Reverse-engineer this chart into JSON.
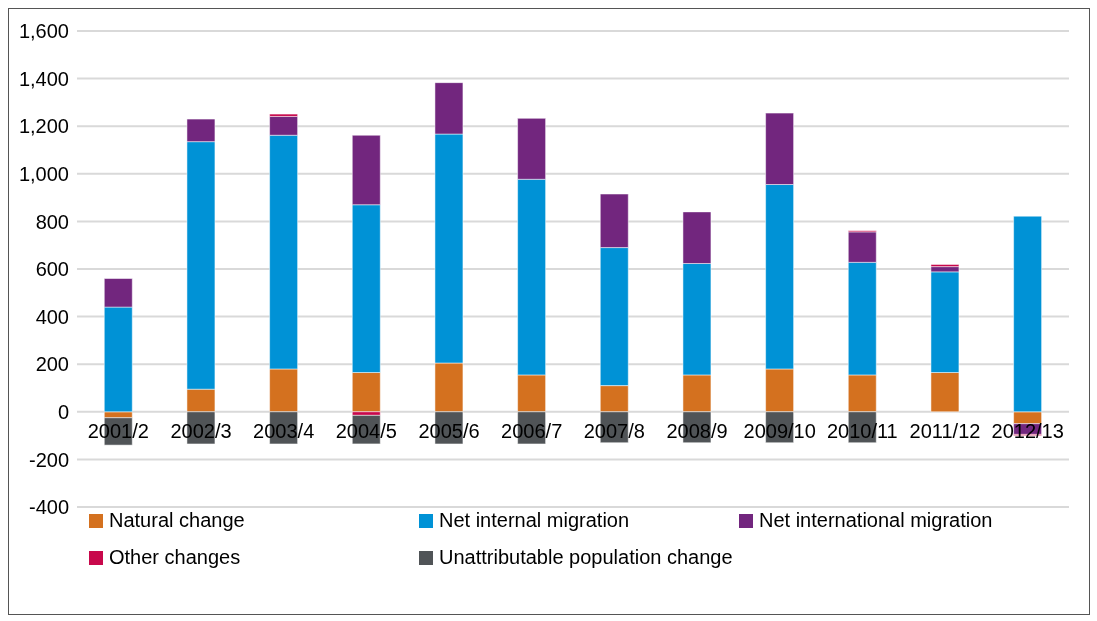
{
  "chart_data": {
    "type": "bar",
    "stacked": true,
    "categories": [
      "2001/2",
      "2002/3",
      "2003/4",
      "2004/5",
      "2005/6",
      "2006/7",
      "2007/8",
      "2008/9",
      "2009/10",
      "2010/11",
      "2011/12",
      "2012/13"
    ],
    "series": [
      {
        "name": "Natural change",
        "color": "#d4711f",
        "values": [
          -25,
          95,
          180,
          165,
          205,
          155,
          110,
          155,
          180,
          155,
          165,
          -50
        ]
      },
      {
        "name": "Net internal migration",
        "color": "#0092d6",
        "values": [
          440,
          1040,
          982,
          705,
          962,
          822,
          580,
          468,
          775,
          473,
          423,
          822
        ]
      },
      {
        "name": "Net international migration",
        "color": "#72267e",
        "values": [
          120,
          95,
          79,
          292,
          216,
          256,
          225,
          217,
          300,
          128,
          22,
          -45
        ]
      },
      {
        "name": "Other changes",
        "color": "#c8084b",
        "values": [
          null,
          null,
          10,
          -15,
          null,
          null,
          null,
          null,
          null,
          5,
          9,
          -5
        ]
      },
      {
        "name": "Unattributable population change",
        "color": "#505457",
        "values": [
          -115,
          -135,
          -135,
          -120,
          -135,
          -135,
          -130,
          -130,
          -130,
          -130,
          null,
          null
        ]
      }
    ],
    "ylim": [
      -400,
      1600
    ],
    "yticks": [
      {
        "value": -400,
        "label": "-400"
      },
      {
        "value": -200,
        "label": "-200"
      },
      0,
      200,
      400,
      600,
      800,
      {
        "value": 1000,
        "label": "1,000"
      },
      {
        "value": 1200,
        "label": "1,200"
      },
      {
        "value": 1400,
        "label": "1,400"
      },
      {
        "value": 1600,
        "label": "1,600"
      }
    ],
    "grid": "y",
    "legend": "bottom"
  }
}
